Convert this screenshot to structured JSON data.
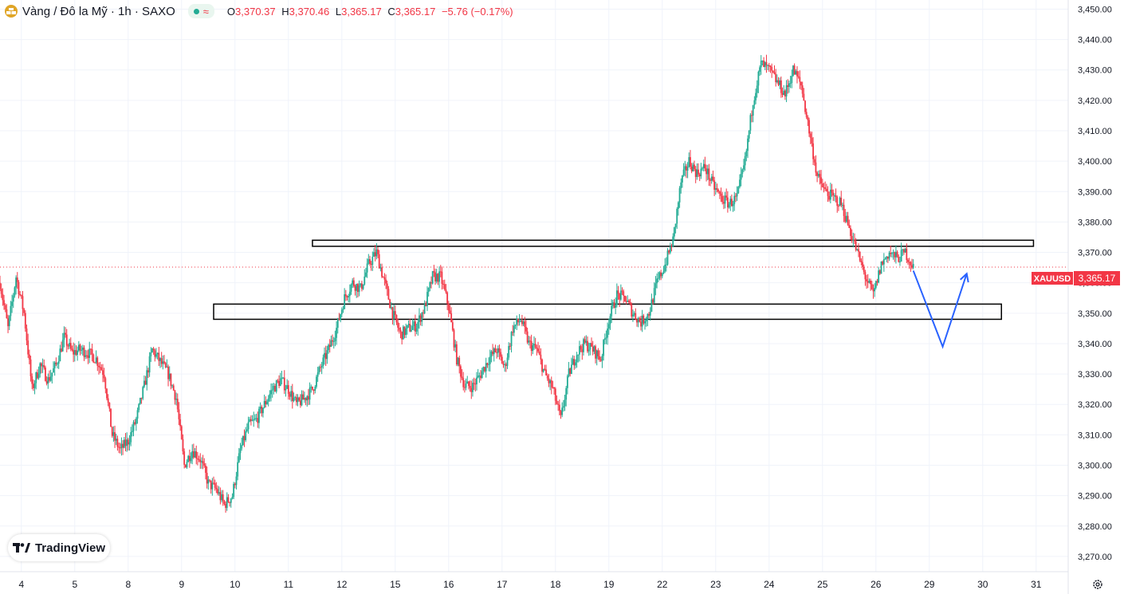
{
  "header": {
    "symbol": "Vàng / Đô la Mỹ · 1h · SAXO",
    "open_label": "O",
    "open": "3,370.37",
    "high_label": "H",
    "high": "3,370.46",
    "low_label": "L",
    "low": "3,365.17",
    "close_label": "C",
    "close": "3,365.17",
    "change": "−5.76 (−0.17%)",
    "coin_icon": "gold-bars-icon"
  },
  "price_tag": {
    "ticker": "XAUUSD",
    "price": "3,365.17"
  },
  "branding": {
    "logo_text": "TradingView"
  },
  "colors": {
    "up": "#22ab94",
    "down": "#f23645",
    "grid": "#f0f3fa",
    "projection": "#2962ff",
    "price_line": "#f23645"
  },
  "chart_data": {
    "type": "candlestick",
    "symbol": "XAUUSD",
    "timeframe": "1h",
    "ylim": [
      3265,
      3453
    ],
    "y_ticks": [
      3270,
      3280,
      3290,
      3300,
      3310,
      3320,
      3330,
      3340,
      3350,
      3360,
      3370,
      3380,
      3390,
      3400,
      3410,
      3420,
      3430,
      3440,
      3450
    ],
    "y_tick_labels": [
      "3,270.00",
      "3,280.00",
      "3,290.00",
      "3,300.00",
      "3,310.00",
      "3,320.00",
      "3,330.00",
      "3,340.00",
      "3,350.00",
      "3,360.00",
      "3,370.00",
      "3,380.00",
      "3,390.00",
      "3,400.00",
      "3,410.00",
      "3,420.00",
      "3,430.00",
      "3,440.00",
      "3,450.00"
    ],
    "x_ticks": [
      {
        "label": "4",
        "t": 0.8
      },
      {
        "label": "5",
        "t": 2.8
      },
      {
        "label": "8",
        "t": 4.8
      },
      {
        "label": "9",
        "t": 6.8
      },
      {
        "label": "10",
        "t": 8.8
      },
      {
        "label": "11",
        "t": 10.8
      },
      {
        "label": "12",
        "t": 12.8
      },
      {
        "label": "15",
        "t": 14.8
      },
      {
        "label": "16",
        "t": 16.8
      },
      {
        "label": "17",
        "t": 18.8
      },
      {
        "label": "18",
        "t": 20.8
      },
      {
        "label": "19",
        "t": 22.8
      },
      {
        "label": "22",
        "t": 24.8
      },
      {
        "label": "23",
        "t": 26.8
      },
      {
        "label": "24",
        "t": 28.8
      },
      {
        "label": "25",
        "t": 30.8
      },
      {
        "label": "26",
        "t": 32.8
      },
      {
        "label": "29",
        "t": 34.8
      },
      {
        "label": "30",
        "t": 36.8
      },
      {
        "label": "31",
        "t": 38.8
      }
    ],
    "price_path": [
      [
        0.0,
        3360
      ],
      [
        0.3,
        3345
      ],
      [
        0.6,
        3362
      ],
      [
        0.9,
        3350
      ],
      [
        1.2,
        3325
      ],
      [
        1.5,
        3333
      ],
      [
        1.8,
        3328
      ],
      [
        2.1,
        3333
      ],
      [
        2.4,
        3342
      ],
      [
        2.7,
        3337
      ],
      [
        3.0,
        3338
      ],
      [
        3.3,
        3337
      ],
      [
        3.6,
        3335
      ],
      [
        3.9,
        3330
      ],
      [
        4.2,
        3310
      ],
      [
        4.5,
        3305
      ],
      [
        4.8,
        3308
      ],
      [
        5.1,
        3315
      ],
      [
        5.4,
        3326
      ],
      [
        5.7,
        3338
      ],
      [
        6.0,
        3334
      ],
      [
        6.3,
        3330
      ],
      [
        6.6,
        3322
      ],
      [
        6.9,
        3300
      ],
      [
        7.2,
        3305
      ],
      [
        7.5,
        3302
      ],
      [
        7.8,
        3294
      ],
      [
        8.1,
        3292
      ],
      [
        8.4,
        3287
      ],
      [
        8.7,
        3290
      ],
      [
        9.0,
        3305
      ],
      [
        9.3,
        3313
      ],
      [
        9.6,
        3315
      ],
      [
        9.9,
        3320
      ],
      [
        10.2,
        3325
      ],
      [
        10.5,
        3328
      ],
      [
        10.8,
        3325
      ],
      [
        11.1,
        3320
      ],
      [
        11.4,
        3322
      ],
      [
        11.7,
        3325
      ],
      [
        12.0,
        3332
      ],
      [
        12.3,
        3338
      ],
      [
        12.6,
        3345
      ],
      [
        12.9,
        3355
      ],
      [
        13.2,
        3360
      ],
      [
        13.5,
        3358
      ],
      [
        13.8,
        3366
      ],
      [
        14.1,
        3370
      ],
      [
        14.4,
        3360
      ],
      [
        14.7,
        3350
      ],
      [
        15.0,
        3343
      ],
      [
        15.3,
        3345
      ],
      [
        15.6,
        3346
      ],
      [
        15.9,
        3352
      ],
      [
        16.2,
        3362
      ],
      [
        16.5,
        3362
      ],
      [
        16.8,
        3352
      ],
      [
        17.1,
        3335
      ],
      [
        17.4,
        3326
      ],
      [
        17.7,
        3326
      ],
      [
        18.0,
        3330
      ],
      [
        18.3,
        3335
      ],
      [
        18.6,
        3338
      ],
      [
        18.9,
        3332
      ],
      [
        19.2,
        3345
      ],
      [
        19.5,
        3348
      ],
      [
        19.8,
        3340
      ],
      [
        20.1,
        3338
      ],
      [
        20.4,
        3330
      ],
      [
        20.7,
        3325
      ],
      [
        21.0,
        3315
      ],
      [
        21.3,
        3330
      ],
      [
        21.6,
        3337
      ],
      [
        21.9,
        3340
      ],
      [
        22.2,
        3338
      ],
      [
        22.5,
        3335
      ],
      [
        22.8,
        3348
      ],
      [
        23.1,
        3356
      ],
      [
        23.4,
        3355
      ],
      [
        23.7,
        3350
      ],
      [
        24.0,
        3347
      ],
      [
        24.3,
        3350
      ],
      [
        24.6,
        3360
      ],
      [
        24.9,
        3366
      ],
      [
        25.2,
        3374
      ],
      [
        25.5,
        3393
      ],
      [
        25.8,
        3400
      ],
      [
        26.1,
        3396
      ],
      [
        26.4,
        3398
      ],
      [
        26.7,
        3392
      ],
      [
        27.0,
        3388
      ],
      [
        27.3,
        3386
      ],
      [
        27.6,
        3388
      ],
      [
        27.9,
        3400
      ],
      [
        28.2,
        3420
      ],
      [
        28.5,
        3432
      ],
      [
        28.8,
        3430
      ],
      [
        29.1,
        3426
      ],
      [
        29.4,
        3422
      ],
      [
        29.7,
        3430
      ],
      [
        30.0,
        3425
      ],
      [
        30.3,
        3410
      ],
      [
        30.6,
        3395
      ],
      [
        30.9,
        3390
      ],
      [
        31.2,
        3388
      ],
      [
        31.5,
        3386
      ],
      [
        31.8,
        3378
      ],
      [
        32.1,
        3370
      ],
      [
        32.4,
        3362
      ],
      [
        32.7,
        3356
      ],
      [
        33.0,
        3366
      ],
      [
        33.3,
        3370
      ],
      [
        33.6,
        3368
      ],
      [
        33.9,
        3370
      ],
      [
        34.2,
        3365.17
      ]
    ],
    "price_line": 3365.17,
    "zones": [
      {
        "name": "resistance-zone",
        "t_start": 11.7,
        "t_end": 38.7,
        "y_low": 3372,
        "y_high": 3374
      },
      {
        "name": "support-zone",
        "t_start": 8.0,
        "t_end": 37.5,
        "y_low": 3348,
        "y_high": 3353
      }
    ],
    "projection": [
      [
        34.2,
        3364
      ],
      [
        35.3,
        3339
      ],
      [
        36.2,
        3363
      ]
    ],
    "grid": true
  }
}
